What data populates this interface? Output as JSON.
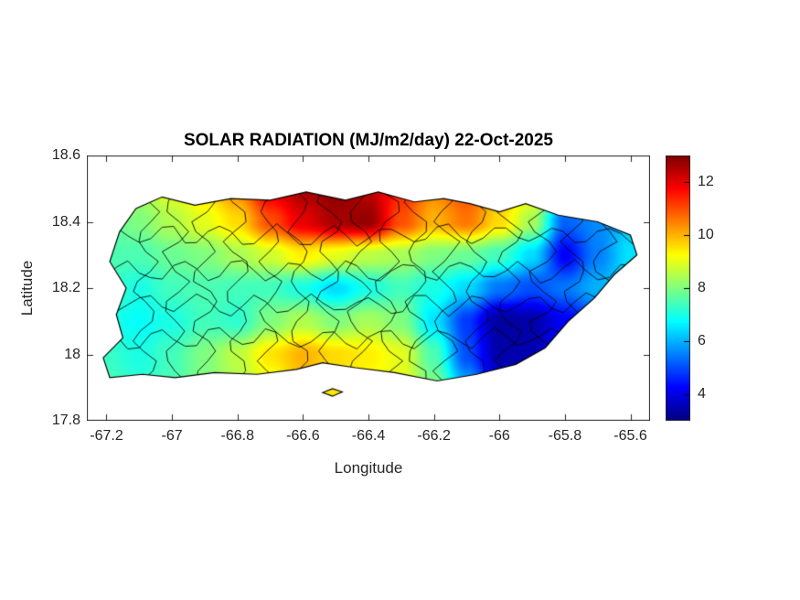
{
  "figure": {
    "title": "SOLAR RADIATION (MJ/m2/day) 22-Oct-2025",
    "xlabel": "Longitude",
    "ylabel": "Latitude",
    "background_color": "#ffffff",
    "axis_color": "#262626"
  },
  "chart_data": {
    "type": "heatmap",
    "title": "SOLAR RADIATION (MJ/m2/day) 22-Oct-2025",
    "region": "Puerto Rico with municipal boundaries",
    "units": "MJ/m2/day",
    "date": "22-Oct-2025",
    "xlabel": "Longitude",
    "ylabel": "Latitude",
    "xlim": [
      -67.26,
      -65.54
    ],
    "ylim": [
      17.8,
      18.6
    ],
    "x_tick_values": [
      -67.2,
      -67,
      -66.8,
      -66.6,
      -66.4,
      -66.2,
      -66,
      -65.8,
      -65.6
    ],
    "x_tick_labels": [
      "-67.2",
      "-67",
      "-66.8",
      "-66.6",
      "-66.4",
      "-66.2",
      "-66",
      "-65.8",
      "-65.6"
    ],
    "y_tick_values": [
      17.8,
      18,
      18.2,
      18.4,
      18.6
    ],
    "y_tick_labels": [
      "17.8",
      "18",
      "18.2",
      "18.4",
      "18.6"
    ],
    "colormap": "jet",
    "color_range": [
      3,
      13
    ],
    "colorbar_tick_values": [
      4,
      6,
      8,
      10,
      12
    ],
    "colorbar_tick_labels": [
      "4",
      "6",
      "8",
      "10",
      "12"
    ],
    "grid_lon": [
      -67.3,
      -67.2,
      -67.1,
      -67.0,
      -66.9,
      -66.8,
      -66.7,
      -66.6,
      -66.5,
      -66.4,
      -66.3,
      -66.2,
      -66.1,
      -66.0,
      -65.9,
      -65.8,
      -65.7,
      -65.6,
      -65.5
    ],
    "grid_lat": [
      17.9,
      18.0,
      18.1,
      18.2,
      18.3,
      18.4,
      18.5
    ],
    "values": [
      [
        7.5,
        7.5,
        7.2,
        7.5,
        8.0,
        8.5,
        9.0,
        9.8,
        9.5,
        9.2,
        9.0,
        8.0,
        6.0,
        4.0,
        4.0,
        5.0,
        5.5,
        6.0,
        6.0
      ],
      [
        7.5,
        7.3,
        7.0,
        7.4,
        8.0,
        8.6,
        9.5,
        10.0,
        9.6,
        9.4,
        9.0,
        7.5,
        5.0,
        3.4,
        3.5,
        4.5,
        5.5,
        6.0,
        6.0
      ],
      [
        7.0,
        7.0,
        6.8,
        7.0,
        7.4,
        7.2,
        8.0,
        8.5,
        8.0,
        8.4,
        8.0,
        6.5,
        4.8,
        3.3,
        3.4,
        4.2,
        5.0,
        6.0,
        6.0
      ],
      [
        7.0,
        7.4,
        7.0,
        7.4,
        7.5,
        7.4,
        7.4,
        7.0,
        6.4,
        7.0,
        7.4,
        7.0,
        6.4,
        5.4,
        5.0,
        5.4,
        6.0,
        6.5,
        6.5
      ],
      [
        7.5,
        7.5,
        7.5,
        7.8,
        8.0,
        8.4,
        8.8,
        9.4,
        9.0,
        8.6,
        8.4,
        8.0,
        7.8,
        7.4,
        6.4,
        4.2,
        5.5,
        6.5,
        6.5
      ],
      [
        7.5,
        7.6,
        8.0,
        8.5,
        9.0,
        9.6,
        11.0,
        12.0,
        12.6,
        12.8,
        11.0,
        10.0,
        10.6,
        9.6,
        8.4,
        5.2,
        5.6,
        6.2,
        6.2
      ],
      [
        8.0,
        8.0,
        8.4,
        9.0,
        9.6,
        10.4,
        12.0,
        12.6,
        12.9,
        12.4,
        11.4,
        10.4,
        11.0,
        10.0,
        9.4,
        7.5,
        6.4,
        6.0,
        6.0
      ]
    ],
    "coastline": [
      [
        -67.16,
        18.37
      ],
      [
        -67.11,
        18.44
      ],
      [
        -67.03,
        18.475
      ],
      [
        -66.93,
        18.45
      ],
      [
        -66.82,
        18.47
      ],
      [
        -66.7,
        18.465
      ],
      [
        -66.59,
        18.49
      ],
      [
        -66.47,
        18.465
      ],
      [
        -66.37,
        18.49
      ],
      [
        -66.26,
        18.46
      ],
      [
        -66.17,
        18.47
      ],
      [
        -66.09,
        18.455
      ],
      [
        -66.0,
        18.43
      ],
      [
        -65.92,
        18.455
      ],
      [
        -65.82,
        18.42
      ],
      [
        -65.7,
        18.4
      ],
      [
        -65.6,
        18.36
      ],
      [
        -65.58,
        18.3
      ],
      [
        -65.65,
        18.24
      ],
      [
        -65.71,
        18.17
      ],
      [
        -65.79,
        18.1
      ],
      [
        -65.86,
        18.02
      ],
      [
        -65.95,
        17.97
      ],
      [
        -66.07,
        17.94
      ],
      [
        -66.19,
        17.92
      ],
      [
        -66.32,
        17.945
      ],
      [
        -66.44,
        17.96
      ],
      [
        -66.54,
        17.975
      ],
      [
        -66.62,
        17.955
      ],
      [
        -66.74,
        17.94
      ],
      [
        -66.87,
        17.945
      ],
      [
        -66.99,
        17.93
      ],
      [
        -67.09,
        17.94
      ],
      [
        -67.19,
        17.93
      ],
      [
        -67.21,
        17.99
      ],
      [
        -67.15,
        18.05
      ],
      [
        -67.17,
        18.12
      ],
      [
        -67.14,
        18.2
      ],
      [
        -67.19,
        18.28
      ]
    ],
    "islets": [
      [
        [
          -66.54,
          17.885
        ],
        [
          -66.51,
          17.897
        ],
        [
          -66.48,
          17.887
        ],
        [
          -66.51,
          17.874
        ]
      ]
    ],
    "boundaries": {
      "meridians": [
        -67.08,
        -66.99,
        -66.9,
        -66.8,
        -66.7,
        -66.61,
        -66.52,
        -66.43,
        -66.34,
        -66.25,
        -66.16,
        -66.07,
        -65.97,
        -65.87,
        -65.77,
        -65.68
      ],
      "parallels": [
        18.05,
        18.15,
        18.25,
        18.36
      ]
    }
  }
}
